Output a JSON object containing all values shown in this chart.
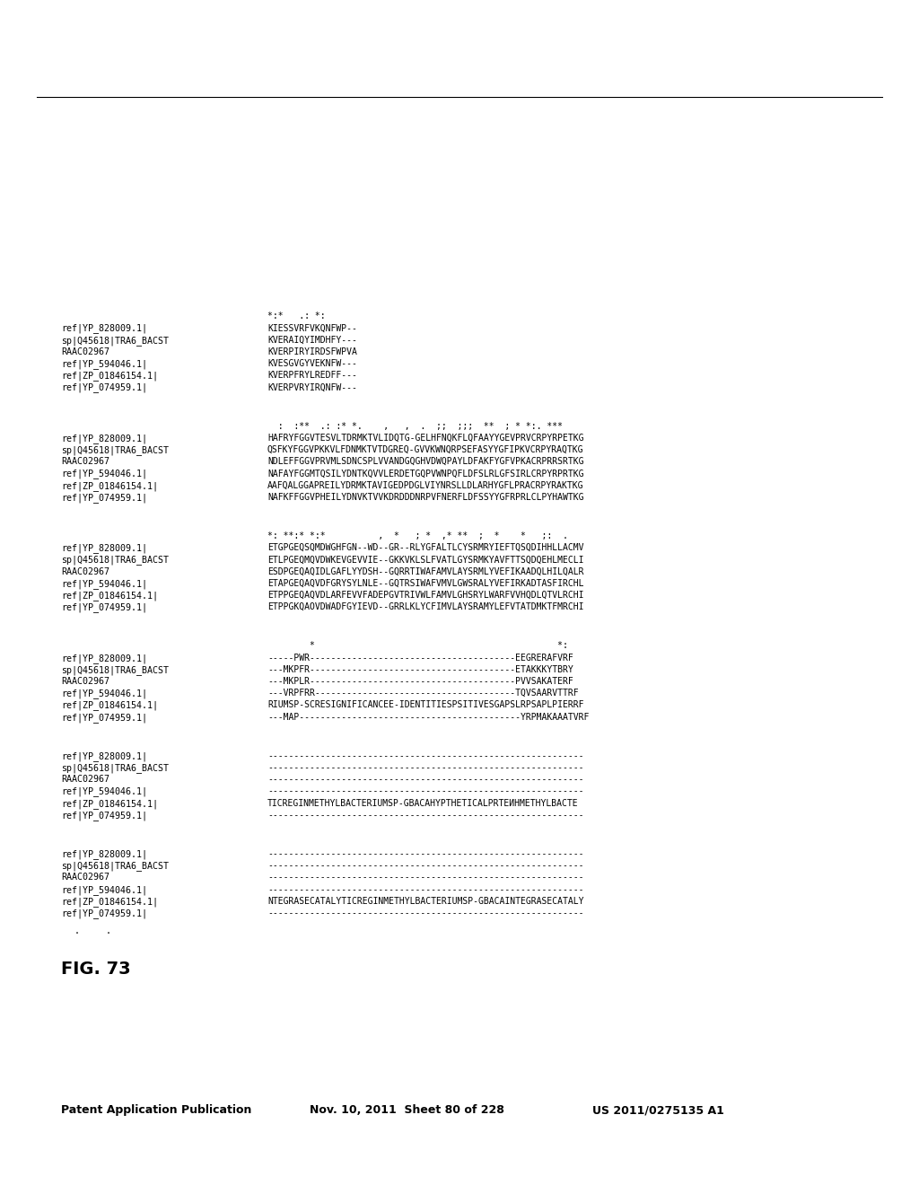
{
  "header_left": "Patent Application Publication",
  "header_mid": "Nov. 10, 2011  Sheet 80 of 228",
  "header_right": "US 2011/0275135 A1",
  "fig_label": "FIG. 73",
  "background_color": "#ffffff",
  "text_color": "#000000",
  "blocks": [
    {
      "labels": [
        "ref|YP_074959.1|",
        "ref|ZP_01846154.1|",
        "ref|YP_594046.1|",
        "RAAC02967",
        "sp|Q45618|TRA6_BACST",
        "ref|YP_828009.1|"
      ],
      "sequences": [
        "------------------------------------------------------------",
        "NTEGRASECATALYTICREGINMETHYLBACTERIUMSP-GBACAINTEGRASECATALY",
        "------------------------------------------------------------",
        "------------------------------------------------------------",
        "------------------------------------------------------------",
        "------------------------------------------------------------"
      ],
      "conservation": ""
    },
    {
      "labels": [
        "ref|YP_074959.1|",
        "ref|ZP_01846154.1|",
        "ref|YP_594046.1|",
        "RAAC02967",
        "sp|Q45618|TRA6_BACST",
        "ref|YP_828009.1|"
      ],
      "sequences": [
        "------------------------------------------------------------",
        "TICREGINMETHYLBACTERIUMSP-GBACAHYPTHETICALPRTEИНМETHYLBACTE",
        "------------------------------------------------------------",
        "------------------------------------------------------------",
        "------------------------------------------------------------",
        "------------------------------------------------------------"
      ],
      "conservation": ""
    },
    {
      "labels": [
        "ref|YP_074959.1|",
        "ref|ZP_01846154.1|",
        "ref|YP_594046.1|",
        "RAAC02967",
        "sp|Q45618|TRA6_BACST",
        "ref|YP_828009.1|"
      ],
      "sequences": [
        "---MAP------------------------------------------YRPMAKAAATVRF",
        "RIUMSP-SCRESIGNIFICANCEE-IDENTITIESPSITIVESGAPSLRPSAPLPIERRF",
        "---VRPFRR--------------------------------------TQVSAARVTTRF",
        "---MKPLR---------------------------------------PVVSAKATERF",
        "---MKPFR---------------------------------------ETAKKKYTВRY",
        "-----PWR---------------------------------------EEGRERAFVRF"
      ],
      "conservation": "        *                                              *:"
    },
    {
      "labels": [
        "ref|YP_074959.1|",
        "ref|ZP_01846154.1|",
        "ref|YP_594046.1|",
        "RAAC02967",
        "sp|Q45618|TRA6_BACST",
        "ref|YP_828009.1|"
      ],
      "sequences": [
        "ETPPGKQAOVDWADFGYIEVD--GRRLKLYCFIMVLAYSRAMYLEFVTATDMKTFMRCHI",
        "ETPPGEQAQVDLARFEVVFADEPGVTRIVWLFAMVLGHSRYLWARFVVHQDLQTVLRCHI",
        "ETAPGEQAQVDFGRYSYLNLE--GQTRSIWAFVMVLGWSRALYVEFIRKADTASFIRCHL",
        "ESDPGEQAQIDLGAFLYYDSH--GQRRTIWAFAMVLAYSRMLYVEFIKAADQLHILQALR",
        "ETLPGEQMQVDWKEVGEVVIE--GKKVKLSLFVATLGYSRMKYAVFTTSQDQEHLMECLI",
        "ETGPGEQSQMDWGHFGN--WD--GR--RLYGFALTLCYSRMRYIEFTQSQDIHHLLACMV"
      ],
      "conservation": "*: **:* *:*          ,  *   ; *  ,* **  ;  *    *   ;:  ."
    },
    {
      "labels": [
        "ref|YP_074959.1|",
        "ref|ZP_01846154.1|",
        "ref|YP_594046.1|",
        "RAAC02967",
        "sp|Q45618|TRA6_BACST",
        "ref|YP_828009.1|"
      ],
      "sequences": [
        "NAFKFFGGVPHEILYDNVKTVVKDRDDDNRPVFNERFLDFSSYYGFRPRLCLPYHAWTKG",
        "AAFQALGGAPREILYDRMKTAVIGEDPDGLVIYNRSLLDLARHYGFLPRACRPYRAKTKG",
        "NAFAYFGGMTQSILYDNTKQVVLERDETGQPVWNPQFLDFSLRLGFSIRLCRPYRPRTKG",
        "NDLEFFGGVPRVMLSDNCSPLVVANDGQGHVDWQPAYLDFAKFYGFVPKACRPRRSRTKG",
        "QSFKYFGGVPKKVLFDNMKTVTDGREQ-GVVKWNQRPSEFASYYGFIPKVCRPYRAQTKG",
        "HAFRYFGGVTESVLTDRMKTVLIDQTG-GELHFNQKFLQFAAYYGEVPRVCRPYRPETKG"
      ],
      "conservation": "  :  :**  .: :* *.    ,   ,  .  ;;  ;;;  **  ; * *:. ***"
    },
    {
      "labels": [
        "ref|YP_074959.1|",
        "ref|ZP_01846154.1|",
        "ref|YP_594046.1|",
        "RAAC02967",
        "sp|Q45618|TRA6_BACST",
        "ref|YP_828009.1|"
      ],
      "sequences": [
        "KVERPVRYIRQNFW---",
        "KVERPFRYLREDFF---",
        "KVESGVGYVEKNFW---",
        "KVERPIRYIRDSFWPVA",
        "KVERAIQYIMDHFY---",
        "KIESSVRFVKQNFWP--"
      ],
      "conservation": "*:*   .: *:"
    }
  ]
}
